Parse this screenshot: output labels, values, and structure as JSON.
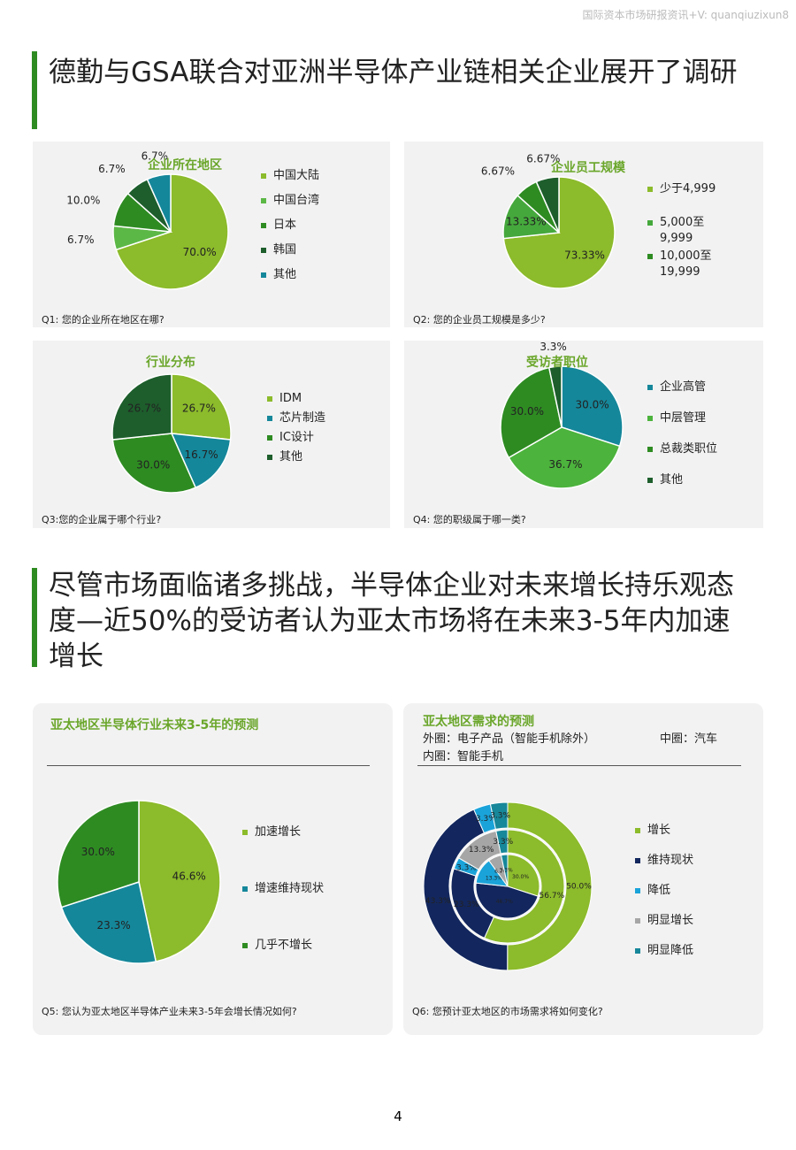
{
  "header": {
    "watermark": "国际资本市场研报资讯+V: quanqiuzixun8"
  },
  "sections": [
    "德勤与GSA联合对亚洲半导体产业链相关企业展开了调研",
    "尽管市场面临诸多挑战，半导体企业对未来增长持乐观态度—近50%的受访者认为亚太市场将在未来3-5年内加速增长"
  ],
  "chart_data": [
    {
      "type": "pie",
      "title": "企业所在地区",
      "question": "Q1: 您的企业所在地区在哪?",
      "categories": [
        "中国大陆",
        "中国台湾",
        "日本",
        "韩国",
        "其他"
      ],
      "values": [
        70.0,
        6.7,
        10.0,
        6.7,
        6.7
      ],
      "value_labels": [
        "70.0%",
        "6.7%",
        "10.0%",
        "6.7%",
        "6.7%"
      ],
      "colors": [
        "#8cbb2b",
        "#5cb846",
        "#2e8b22",
        "#1d5e2c",
        "#15879a"
      ]
    },
    {
      "type": "pie",
      "title": "企业员工规模",
      "question": "Q2: 您的企业员工规模是多少?",
      "categories": [
        "少于4,999",
        "5,000至9,999",
        "10,000至19,999",
        null
      ],
      "values": [
        73.33,
        13.33,
        6.67,
        6.67
      ],
      "value_labels": [
        "73.33%",
        "13.33%",
        "6.67%",
        "6.67%"
      ],
      "colors": [
        "#8cbb2b",
        "#45a83c",
        "#2e8b22",
        "#1d5e2c"
      ]
    },
    {
      "type": "pie",
      "title": "行业分布",
      "question": "Q3:您的企业属于哪个行业?",
      "categories": [
        "IDM",
        "芯片制造",
        "IC设计",
        "其他"
      ],
      "values": [
        26.7,
        16.7,
        30.0,
        26.7
      ],
      "value_labels": [
        "26.7%",
        "16.7%",
        "30.0%",
        "26.7%"
      ],
      "colors": [
        "#8cbb2b",
        "#15879a",
        "#2e8b22",
        "#1d5e2c"
      ]
    },
    {
      "type": "pie",
      "title": "受访者职位",
      "question": "Q4: 您的职级属于哪一类?",
      "categories": [
        "企业高管",
        "中层管理",
        "总裁类职位",
        "其他"
      ],
      "values": [
        30.0,
        36.7,
        30.0,
        3.3
      ],
      "value_labels": [
        "30.0%",
        "36.7%",
        "30.0%",
        "3.3%"
      ],
      "colors": [
        "#15879a",
        "#4cb33c",
        "#2e8b22",
        "#1d5e2c"
      ]
    },
    {
      "type": "pie",
      "title": "亚太地区半导体行业未来3-5年的预测",
      "question": "Q5: 您认为亚太地区半导体产业未来3-5年会增长情况如何?",
      "categories": [
        "加速增长",
        "增速维持现状",
        "几乎不增长"
      ],
      "values": [
        46.6,
        23.3,
        30.0
      ],
      "value_labels": [
        "46.6%",
        "23.3%",
        "30.0%"
      ],
      "colors": [
        "#8cbb2b",
        "#15879a",
        "#2e8b22"
      ]
    },
    {
      "type": "donut",
      "title": "亚太地区需求的预测",
      "question": "Q6: 您预计亚太地区的市场需求将如何变化?",
      "categories": [
        "增长",
        "维持现状",
        "降低",
        "明显增长",
        "明显降低"
      ],
      "colors": [
        "#8cbb2b",
        "#13275e",
        "#1aa3d9",
        "#a6a6a6",
        "#17879a"
      ],
      "series": [
        {
          "name": "外圈：电子产品（智能手机除外）",
          "values": [
            50.0,
            43.3,
            3.3,
            null,
            3.3
          ],
          "value_labels": [
            "50.0%",
            "43.3%",
            "3.3%",
            null,
            "3.3%"
          ]
        },
        {
          "name": "中圈：汽车",
          "values": [
            56.7,
            23.3,
            3.3,
            13.3,
            3.3
          ],
          "value_labels": [
            "56.7%",
            "23.3%",
            "3.3%",
            "13.3%",
            "3.3%"
          ]
        },
        {
          "name": "内圈：智能手机",
          "values": [
            30.0,
            46.7,
            13.3,
            6.7,
            3.3
          ],
          "value_labels": [
            "30.0%",
            "46.7%",
            "13.3%",
            "6.7%",
            "3.3%"
          ]
        }
      ]
    }
  ],
  "page_number": "4"
}
